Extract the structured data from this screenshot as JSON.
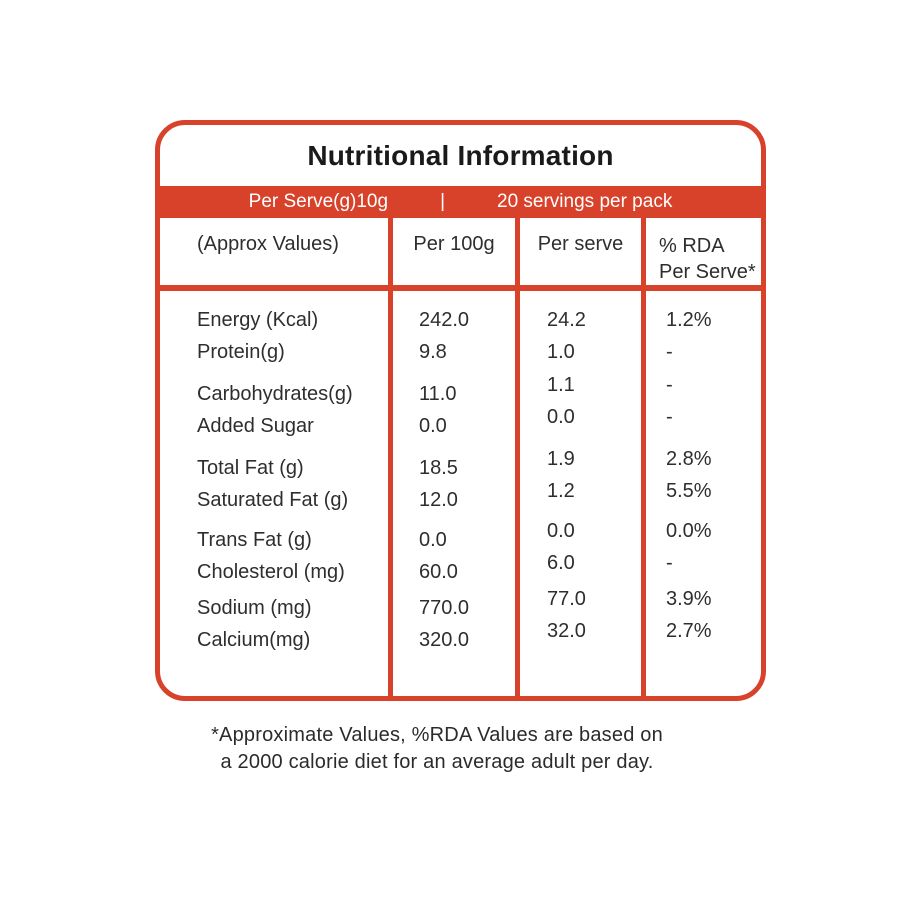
{
  "title": "Nutritional Information",
  "banner": {
    "serve_info": "Per Serve(g)10g",
    "separator": "|",
    "pack_info": "20 servings per pack"
  },
  "table": {
    "headers": {
      "col1": "(Approx Values)",
      "col2": "Per 100g",
      "col3": "Per serve",
      "col4_line1": "% RDA",
      "col4_line2": "Per Serve*"
    },
    "rows": [
      {
        "label": "Energy (Kcal)",
        "per100g": "242.0",
        "perserve": "24.2",
        "rda": "1.2%"
      },
      {
        "label": "Protein(g)",
        "per100g": "9.8",
        "perserve": "1.0",
        "rda": "-"
      },
      {
        "label": "Carbohydrates(g)",
        "per100g": "11.0",
        "perserve": "1.1",
        "rda": "-"
      },
      {
        "label": "Added Sugar",
        "per100g": "0.0",
        "perserve": "0.0",
        "rda": "-"
      },
      {
        "label": "Total Fat (g)",
        "per100g": "18.5",
        "perserve": "1.9",
        "rda": "2.8%"
      },
      {
        "label": "Saturated Fat (g)",
        "per100g": "12.0",
        "perserve": "1.2",
        "rda": "5.5%"
      },
      {
        "label": "Trans Fat (g)",
        "per100g": "0.0",
        "perserve": "0.0",
        "rda": "0.0%"
      },
      {
        "label": "Cholesterol (mg)",
        "per100g": "60.0",
        "perserve": "6.0",
        "rda": "-"
      },
      {
        "label": "Sodium (mg)",
        "per100g": "770.0",
        "perserve": "77.0",
        "rda": "3.9%"
      },
      {
        "label": "Calcium(mg)",
        "per100g": "320.0",
        "perserve": "32.0",
        "rda": "2.7%"
      }
    ]
  },
  "footnote": {
    "line1": "*Approximate Values, %RDA Values are based on",
    "line2": "a 2000 calorie diet for an average adult per day."
  },
  "colors": {
    "accent": "#D8422B",
    "title_text": "#1A1A1A",
    "body_text": "#2E2E2E",
    "banner_text": "#FFFFFF"
  }
}
